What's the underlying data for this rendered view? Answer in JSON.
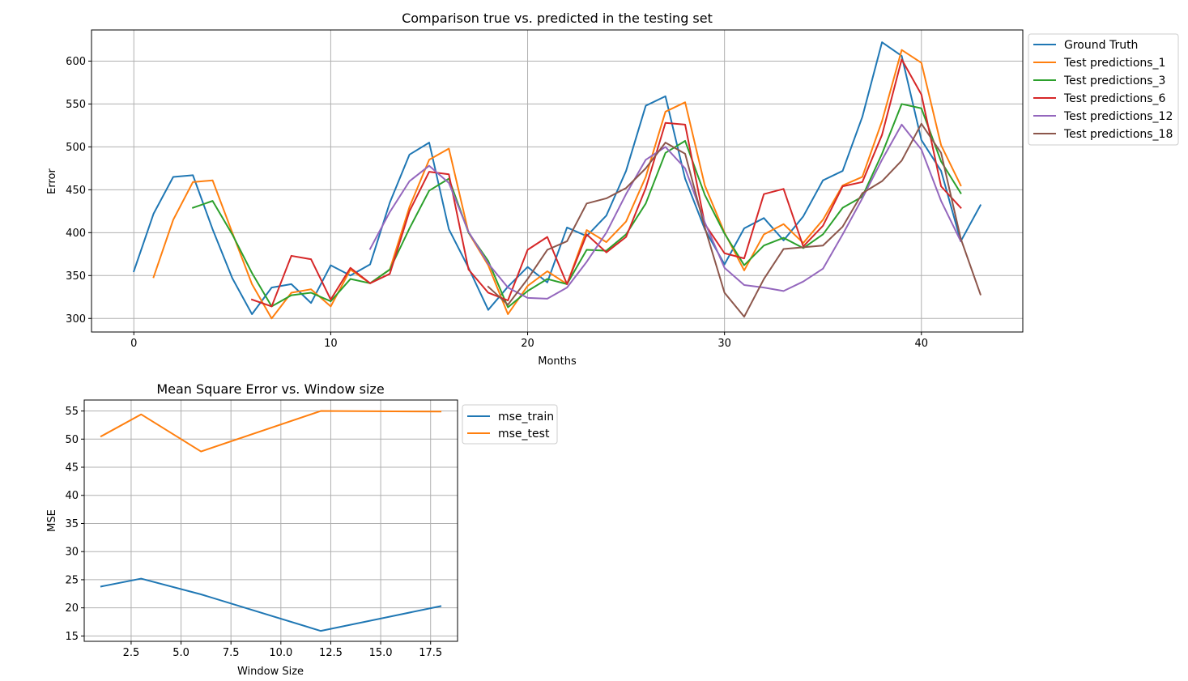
{
  "chart_data": [
    {
      "type": "line",
      "title": "Comparison true vs. predicted in the testing set",
      "xlabel": "Months",
      "ylabel": "Error",
      "xlim": [
        -2.15,
        45.15
      ],
      "ylim": [
        284.2,
        636.3
      ],
      "xticks": [
        0,
        10,
        20,
        30,
        40
      ],
      "yticks": [
        300,
        350,
        400,
        450,
        500,
        550,
        600
      ],
      "grid": true,
      "legend_position": "outside-right",
      "series": [
        {
          "name": "Ground Truth",
          "color": "#1f77b4",
          "x_start": 0,
          "values": [
            355,
            422,
            465,
            467,
            404,
            347,
            305,
            336,
            340,
            318,
            362,
            350,
            363,
            435,
            491,
            505,
            404,
            359,
            310,
            337,
            360,
            342,
            406,
            396,
            420,
            472,
            548,
            559,
            463,
            404,
            363,
            405,
            417,
            391,
            419,
            461,
            472,
            535,
            622,
            606,
            508,
            472,
            390,
            432
          ]
        },
        {
          "name": "Test predictions_1",
          "color": "#ff7f0e",
          "x_start": 1,
          "values": [
            348,
            415,
            459,
            461,
            400,
            340,
            300,
            330,
            334,
            314,
            357,
            341,
            357,
            430,
            485,
            498,
            400,
            362,
            305,
            338,
            355,
            340,
            403,
            389,
            413,
            465,
            541,
            552,
            455,
            400,
            356,
            398,
            410,
            388,
            415,
            455,
            465,
            530,
            613,
            598,
            502,
            455
          ]
        },
        {
          "name": "Test predictions_3",
          "color": "#2ca02c",
          "x_start": 3,
          "values": [
            429,
            437,
            398,
            353,
            314,
            327,
            330,
            320,
            346,
            341,
            357,
            405,
            449,
            463,
            400,
            367,
            313,
            332,
            346,
            340,
            380,
            379,
            398,
            434,
            493,
            507,
            444,
            399,
            362,
            385,
            394,
            382,
            398,
            429,
            442,
            492,
            550,
            545,
            483,
            446
          ]
        },
        {
          "name": "Test predictions_6",
          "color": "#d62728",
          "x_start": 6,
          "values": [
            322,
            314,
            373,
            369,
            322,
            359,
            341,
            352,
            425,
            471,
            468,
            357,
            330,
            321,
            380,
            395,
            340,
            398,
            377,
            395,
            452,
            528,
            526,
            410,
            376,
            370,
            445,
            451,
            384,
            408,
            454,
            459,
            514,
            602,
            561,
            454,
            429
          ]
        },
        {
          "name": "Test predictions_12",
          "color": "#9467bd",
          "x_start": 12,
          "values": [
            381,
            424,
            460,
            478,
            458,
            401,
            364,
            336,
            324,
            323,
            336,
            366,
            400,
            445,
            485,
            500,
            475,
            412,
            359,
            339,
            336,
            332,
            343,
            358,
            398,
            440,
            485,
            526,
            497,
            437,
            390
          ]
        },
        {
          "name": "Test predictions_18",
          "color": "#8c564b",
          "x_start": 18,
          "values": [
            337,
            316,
            346,
            380,
            390,
            434,
            440,
            452,
            475,
            505,
            492,
            406,
            330,
            302,
            346,
            381,
            383,
            385,
            407,
            446,
            460,
            484,
            527,
            493,
            393,
            328
          ]
        }
      ]
    },
    {
      "type": "line",
      "title": "Mean Square Error vs. Window size",
      "xlabel": "Window Size",
      "ylabel": "MSE",
      "xlim": [
        0.15,
        18.85
      ],
      "ylim": [
        14.05,
        56.95
      ],
      "xticks": [
        "2.5",
        "5.0",
        "7.5",
        "10.0",
        "12.5",
        "15.0",
        "17.5"
      ],
      "yticks": [
        "15",
        "20",
        "25",
        "30",
        "35",
        "40",
        "45",
        "50",
        "55"
      ],
      "grid": true,
      "legend_position": "outside-right",
      "x": [
        1,
        3,
        6,
        12,
        18
      ],
      "series": [
        {
          "name": "mse_train",
          "color": "#1f77b4",
          "values": [
            23.8,
            25.2,
            22.4,
            15.9,
            20.3
          ]
        },
        {
          "name": "mse_test",
          "color": "#ff7f0e",
          "values": [
            50.5,
            54.4,
            47.8,
            55.0,
            54.9
          ]
        }
      ]
    }
  ]
}
